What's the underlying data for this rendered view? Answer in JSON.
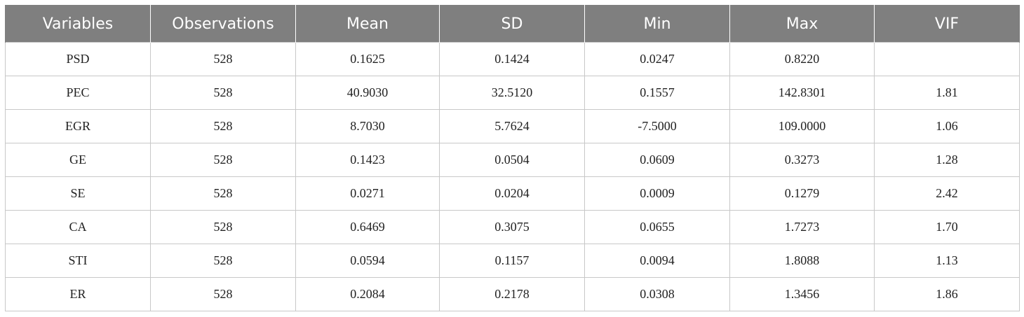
{
  "table": {
    "headers": [
      "Variables",
      "Observations",
      "Mean",
      "SD",
      "Min",
      "Max",
      "VIF"
    ],
    "rows": [
      [
        "PSD",
        "528",
        "0.1625",
        "0.1424",
        "0.0247",
        "0.8220",
        ""
      ],
      [
        "PEC",
        "528",
        "40.9030",
        "32.5120",
        "0.1557",
        "142.8301",
        "1.81"
      ],
      [
        "EGR",
        "528",
        "8.7030",
        "5.7624",
        "-7.5000",
        "109.0000",
        "1.06"
      ],
      [
        "GE",
        "528",
        "0.1423",
        "0.0504",
        "0.0609",
        "0.3273",
        "1.28"
      ],
      [
        "SE",
        "528",
        "0.0271",
        "0.0204",
        "0.0009",
        "0.1279",
        "2.42"
      ],
      [
        "CA",
        "528",
        "0.6469",
        "0.3075",
        "0.0655",
        "1.7273",
        "1.70"
      ],
      [
        "STI",
        "528",
        "0.0594",
        "0.1157",
        "0.0094",
        "1.8088",
        "1.13"
      ],
      [
        "ER",
        "528",
        "0.2084",
        "0.2178",
        "0.0308",
        "1.3456",
        "1.86"
      ]
    ]
  },
  "colors": {
    "header_background": "#7f7f7f",
    "header_text": "#ffffff",
    "grid_line": "#c8c8c8"
  }
}
